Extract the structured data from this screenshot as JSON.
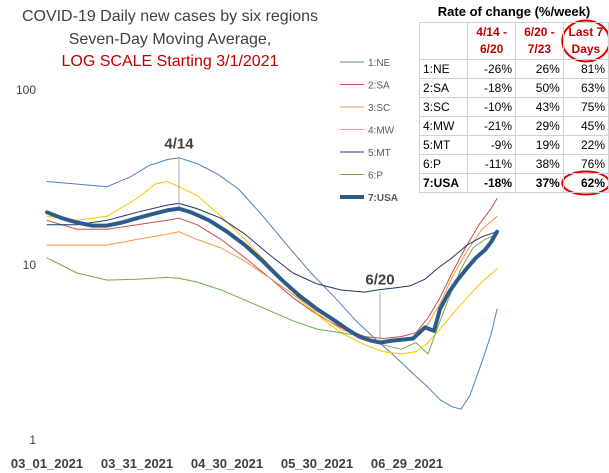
{
  "chart_data": {
    "type": "line",
    "title": "COVID-19 Daily new cases by six regions",
    "subtitle": "Seven-Day Moving Average,",
    "subtitle_note": "LOG SCALE Starting 3/1/2021",
    "y_scale": "log",
    "ylim": [
      1,
      100
    ],
    "y_ticks": [
      "100",
      "10",
      "1"
    ],
    "x_ticks": [
      "03_01_2021",
      "03_31_2021",
      "04_30_2021",
      "05_30_2021",
      "06_29_2021"
    ],
    "x_range_days": [
      0,
      150
    ],
    "legend_placement": "right",
    "grid": false,
    "annotations": [
      {
        "text": "4/14",
        "x": 44,
        "y": 21
      },
      {
        "text": "6/20",
        "x": 111,
        "y": 3.6
      }
    ],
    "series": [
      {
        "name": "1:NE",
        "color": "#4f81bd",
        "width": 1,
        "points": [
          [
            0,
            30
          ],
          [
            10,
            29
          ],
          [
            20,
            28
          ],
          [
            28,
            32
          ],
          [
            34,
            37
          ],
          [
            40,
            40
          ],
          [
            44,
            41
          ],
          [
            50,
            38
          ],
          [
            57,
            33
          ],
          [
            64,
            27
          ],
          [
            72,
            19
          ],
          [
            80,
            13
          ],
          [
            88,
            9
          ],
          [
            96,
            6.5
          ],
          [
            103,
            4.8
          ],
          [
            110,
            3.7
          ],
          [
            116,
            3
          ],
          [
            122,
            2.4
          ],
          [
            127,
            2
          ],
          [
            131,
            1.7
          ],
          [
            135,
            1.55
          ],
          [
            138,
            1.5
          ],
          [
            141,
            1.8
          ],
          [
            145,
            2.8
          ],
          [
            148,
            4
          ],
          [
            150,
            5.6
          ]
        ]
      },
      {
        "name": "2:SA",
        "color": "#c0504d",
        "width": 1,
        "points": [
          [
            0,
            18
          ],
          [
            10,
            16
          ],
          [
            20,
            16
          ],
          [
            30,
            17
          ],
          [
            40,
            18
          ],
          [
            44,
            18.5
          ],
          [
            50,
            17
          ],
          [
            58,
            14
          ],
          [
            66,
            11
          ],
          [
            74,
            8.5
          ],
          [
            82,
            6.5
          ],
          [
            90,
            5.2
          ],
          [
            98,
            4.4
          ],
          [
            106,
            3.9
          ],
          [
            112,
            3.8
          ],
          [
            118,
            3.9
          ],
          [
            123,
            4.1
          ],
          [
            127,
            5
          ],
          [
            131,
            6.5
          ],
          [
            135,
            9
          ],
          [
            140,
            13
          ],
          [
            144,
            17
          ],
          [
            148,
            21
          ],
          [
            150,
            24
          ]
        ]
      },
      {
        "name": "3:SC",
        "color": "#f79646",
        "width": 1,
        "points": [
          [
            0,
            13
          ],
          [
            10,
            13
          ],
          [
            20,
            13
          ],
          [
            30,
            14
          ],
          [
            40,
            15
          ],
          [
            44,
            15.5
          ],
          [
            50,
            14
          ],
          [
            58,
            12.5
          ],
          [
            66,
            10.5
          ],
          [
            74,
            8.5
          ],
          [
            82,
            6.8
          ],
          [
            90,
            5.3
          ],
          [
            98,
            4.3
          ],
          [
            106,
            3.8
          ],
          [
            112,
            3.6
          ],
          [
            118,
            3.7
          ],
          [
            123,
            3.9
          ],
          [
            127,
            4.6
          ],
          [
            131,
            6
          ],
          [
            135,
            8.5
          ],
          [
            140,
            12
          ],
          [
            145,
            16
          ],
          [
            150,
            19
          ]
        ]
      },
      {
        "name": "4:MW",
        "color": "#ffc000",
        "width": 1,
        "points": [
          [
            0,
            19
          ],
          [
            10,
            18
          ],
          [
            20,
            19
          ],
          [
            30,
            24
          ],
          [
            36,
            29
          ],
          [
            40,
            30
          ],
          [
            44,
            28
          ],
          [
            50,
            25
          ],
          [
            58,
            19
          ],
          [
            66,
            14
          ],
          [
            74,
            10
          ],
          [
            82,
            7
          ],
          [
            90,
            5.2
          ],
          [
            98,
            4.1
          ],
          [
            106,
            3.5
          ],
          [
            112,
            3.2
          ],
          [
            118,
            3.1
          ],
          [
            123,
            3.2
          ],
          [
            127,
            3.6
          ],
          [
            131,
            4.3
          ],
          [
            135,
            5.2
          ],
          [
            140,
            6.5
          ],
          [
            145,
            8
          ],
          [
            150,
            9.5
          ]
        ]
      },
      {
        "name": "5:MT",
        "color": "#1f3864",
        "width": 1,
        "points": [
          [
            0,
            17
          ],
          [
            10,
            17
          ],
          [
            20,
            18
          ],
          [
            30,
            20
          ],
          [
            40,
            22
          ],
          [
            44,
            22.5
          ],
          [
            50,
            21
          ],
          [
            58,
            18.5
          ],
          [
            66,
            15
          ],
          [
            74,
            11.5
          ],
          [
            82,
            9
          ],
          [
            90,
            7.8
          ],
          [
            98,
            7.2
          ],
          [
            106,
            7
          ],
          [
            110,
            7.2
          ],
          [
            116,
            7.4
          ],
          [
            121,
            7.6
          ],
          [
            126,
            8.3
          ],
          [
            130,
            9.5
          ],
          [
            135,
            11
          ],
          [
            140,
            13
          ],
          [
            145,
            14.5
          ],
          [
            150,
            15.5
          ]
        ]
      },
      {
        "name": "6:P",
        "color": "#70ad47",
        "width": 1,
        "points": [
          [
            0,
            11
          ],
          [
            10,
            9
          ],
          [
            20,
            8.2
          ],
          [
            30,
            8.3
          ],
          [
            40,
            8.5
          ],
          [
            44,
            8.4
          ],
          [
            50,
            8
          ],
          [
            58,
            7.2
          ],
          [
            66,
            6.3
          ],
          [
            74,
            5.5
          ],
          [
            82,
            4.8
          ],
          [
            90,
            4.3
          ],
          [
            98,
            4.1
          ],
          [
            106,
            3.9
          ],
          [
            112,
            3.5
          ],
          [
            118,
            3.3
          ],
          [
            123,
            3.6
          ],
          [
            127,
            3.1
          ],
          [
            130,
            4.3
          ],
          [
            134,
            6.5
          ],
          [
            138,
            9.5
          ],
          [
            142,
            12.5
          ],
          [
            146,
            14
          ],
          [
            150,
            15
          ]
        ]
      },
      {
        "name": "7:USA",
        "color": "#2e5c8a",
        "width": 4,
        "points": [
          [
            0,
            20
          ],
          [
            5,
            18.5
          ],
          [
            10,
            17.5
          ],
          [
            15,
            16.8
          ],
          [
            20,
            16.8
          ],
          [
            25,
            17.5
          ],
          [
            30,
            18.5
          ],
          [
            35,
            19.5
          ],
          [
            40,
            20.5
          ],
          [
            44,
            21
          ],
          [
            48,
            20
          ],
          [
            54,
            18
          ],
          [
            60,
            15.5
          ],
          [
            66,
            13
          ],
          [
            72,
            10.5
          ],
          [
            78,
            8.3
          ],
          [
            84,
            6.7
          ],
          [
            90,
            5.6
          ],
          [
            96,
            4.8
          ],
          [
            100,
            4.3
          ],
          [
            104,
            3.9
          ],
          [
            108,
            3.7
          ],
          [
            111,
            3.6
          ],
          [
            115,
            3.7
          ],
          [
            119,
            3.75
          ],
          [
            122,
            3.8
          ],
          [
            126,
            4.4
          ],
          [
            129,
            4.2
          ],
          [
            131,
            5.6
          ],
          [
            134,
            7
          ],
          [
            137,
            8.3
          ],
          [
            140,
            9.6
          ],
          [
            143,
            11
          ],
          [
            146,
            12.2
          ],
          [
            148,
            13.5
          ],
          [
            150,
            15.5
          ]
        ]
      }
    ]
  },
  "table": {
    "caption": "Rate of change (%/week)",
    "headers": [
      "4/14 -\n6/20",
      "6/20 -\n7/23",
      "Last 7\nDays"
    ],
    "rows": [
      {
        "label": "1:NE",
        "values": [
          "-26%",
          "26%",
          "81%"
        ]
      },
      {
        "label": "2:SA",
        "values": [
          "-18%",
          "50%",
          "63%"
        ]
      },
      {
        "label": "3:SC",
        "values": [
          "-10%",
          "43%",
          "75%"
        ]
      },
      {
        "label": "4:MW",
        "values": [
          "-21%",
          "29%",
          "45%"
        ]
      },
      {
        "label": "5:MT",
        "values": [
          "-9%",
          "19%",
          "22%"
        ]
      },
      {
        "label": "6:P",
        "values": [
          "-11%",
          "38%",
          "76%"
        ]
      },
      {
        "label": "7:USA",
        "values": [
          "-18%",
          "37%",
          "62%"
        ]
      }
    ],
    "circle_color": "#e00000"
  }
}
